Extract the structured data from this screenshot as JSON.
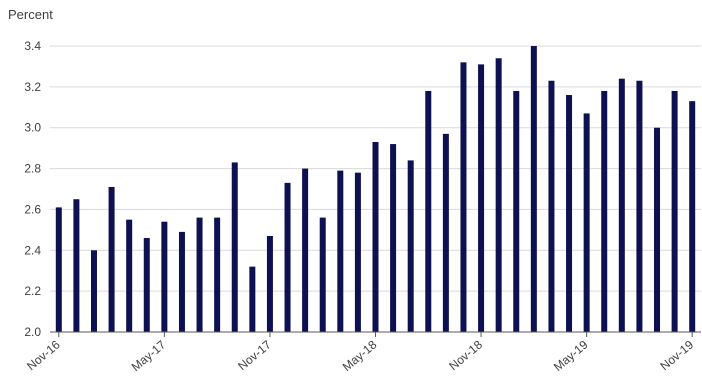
{
  "chart_data": {
    "type": "bar",
    "title": "",
    "unit_label": "Percent",
    "xlabel": "",
    "ylabel": "Percent",
    "ylim": [
      2.0,
      3.4
    ],
    "yticks": [
      2.0,
      2.2,
      2.4,
      2.6,
      2.8,
      3.0,
      3.2,
      3.4
    ],
    "ytick_labels": [
      "2.0",
      "2.2",
      "2.4",
      "2.6",
      "2.8",
      "3.0",
      "3.2",
      "3.4"
    ],
    "grid": true,
    "bar_color": "#0d1152",
    "grid_color": "#d9d9d9",
    "axis_color": "#595959",
    "categories": [
      "Nov-16",
      "Dec-16",
      "Jan-17",
      "Feb-17",
      "Mar-17",
      "Apr-17",
      "May-17",
      "Jun-17",
      "Jul-17",
      "Aug-17",
      "Sep-17",
      "Oct-17",
      "Nov-17",
      "Dec-17",
      "Jan-18",
      "Feb-18",
      "Mar-18",
      "Apr-18",
      "May-18",
      "Jun-18",
      "Jul-18",
      "Aug-18",
      "Sep-18",
      "Oct-18",
      "Nov-18",
      "Dec-18",
      "Jan-19",
      "Feb-19",
      "Mar-19",
      "Apr-19",
      "May-19",
      "Jun-19",
      "Jul-19",
      "Aug-19",
      "Sep-19",
      "Oct-19",
      "Nov-19"
    ],
    "values": [
      2.61,
      2.65,
      2.4,
      2.71,
      2.55,
      2.46,
      2.54,
      2.49,
      2.56,
      2.56,
      2.83,
      2.32,
      2.47,
      2.73,
      2.8,
      2.56,
      2.79,
      2.78,
      2.93,
      2.92,
      2.84,
      3.18,
      2.97,
      3.32,
      3.31,
      3.34,
      3.18,
      3.4,
      3.23,
      3.16,
      3.07,
      3.18,
      3.24,
      3.23,
      3.0,
      3.18,
      3.13
    ],
    "xtick_indices": [
      0,
      6,
      12,
      18,
      24,
      30,
      36
    ],
    "xtick_labels": [
      "Nov-16",
      "May-17",
      "Nov-17",
      "May-18",
      "Nov-18",
      "May-19",
      "Nov-19"
    ]
  }
}
